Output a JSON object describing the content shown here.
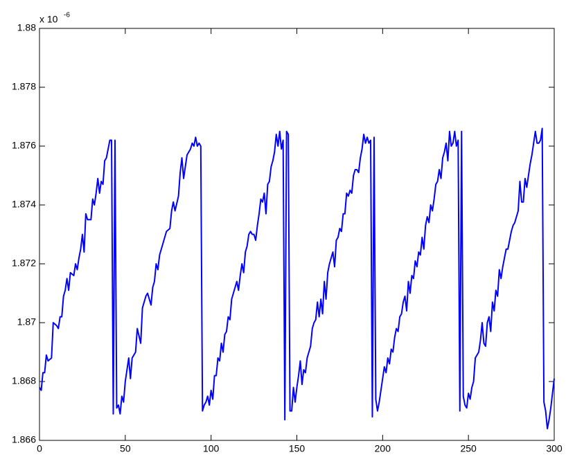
{
  "chart_data": {
    "type": "line",
    "exponent_label": {
      "base": "x 10",
      "power": "-6"
    },
    "color": "#0000ff",
    "x": [
      0,
      1,
      2,
      3,
      4,
      5,
      7,
      8,
      10,
      11,
      12,
      13,
      14,
      15,
      16,
      17,
      18,
      20,
      21,
      22,
      23,
      24,
      25,
      26,
      27,
      28,
      30,
      31,
      32,
      33,
      34,
      35,
      36,
      37,
      38,
      39,
      41,
      42,
      43,
      44,
      45,
      46,
      47,
      48,
      49,
      50,
      52,
      53,
      54,
      56,
      57,
      59,
      60,
      62,
      63,
      65,
      66,
      67,
      68,
      69,
      70,
      72,
      74,
      76,
      77,
      78,
      79,
      81,
      82,
      83,
      84,
      86,
      88,
      89,
      90,
      91,
      92,
      93,
      94,
      95,
      96,
      97,
      98,
      99,
      100,
      101,
      102,
      103,
      104,
      105,
      106,
      107,
      108,
      109,
      110,
      111,
      112,
      113,
      114,
      115,
      116,
      117,
      118,
      119,
      120,
      121,
      122,
      123,
      124,
      125,
      126,
      127,
      128,
      129,
      130,
      131,
      132,
      133,
      134,
      135,
      136,
      137,
      138,
      139,
      140,
      141,
      142,
      143,
      144,
      145,
      146,
      147,
      148,
      149,
      150,
      151,
      152,
      153,
      154,
      155,
      156,
      157,
      158,
      159,
      160,
      161,
      162,
      163,
      164,
      165,
      166,
      167,
      168,
      169,
      170,
      171,
      172,
      173,
      174,
      175,
      176,
      177,
      178,
      179,
      180,
      181,
      182,
      183,
      184,
      185,
      186,
      187,
      188,
      189,
      190,
      191,
      192,
      193,
      194,
      195,
      196,
      197,
      198,
      199,
      200,
      201,
      202,
      203,
      204,
      205,
      206,
      207,
      208,
      209,
      210,
      211,
      212,
      213,
      214,
      215,
      216,
      217,
      218,
      219,
      220,
      221,
      222,
      223,
      224,
      225,
      226,
      227,
      228,
      229,
      230,
      231,
      232,
      233,
      234,
      235,
      236,
      237,
      238,
      239,
      240,
      241,
      242,
      243,
      244,
      245,
      246,
      247,
      248,
      249,
      250,
      251,
      252,
      253,
      254,
      255,
      256,
      257,
      258,
      259,
      260,
      261,
      262,
      263,
      264,
      265,
      266,
      267,
      268,
      269,
      270,
      271,
      272,
      273,
      274,
      275,
      276,
      277,
      278,
      279,
      280,
      281,
      282,
      283,
      284,
      285,
      286,
      287,
      288,
      289,
      290,
      291,
      292,
      293,
      294,
      295,
      296,
      297,
      298,
      299,
      300
    ],
    "values": [
      1.8678,
      1.8677,
      1.8683,
      1.8683,
      1.8689,
      1.8687,
      1.8688,
      1.87,
      1.8699,
      1.8698,
      1.8702,
      1.8702,
      1.8709,
      1.8711,
      1.8715,
      1.8711,
      1.8717,
      1.8716,
      1.872,
      1.8718,
      1.8722,
      1.8725,
      1.873,
      1.8724,
      1.8737,
      1.8735,
      1.8735,
      1.8742,
      1.874,
      1.8744,
      1.8749,
      1.8744,
      1.8748,
      1.8747,
      1.8755,
      1.8756,
      1.8762,
      1.8762,
      1.8669,
      1.8762,
      1.8671,
      1.8672,
      1.8669,
      1.8675,
      1.8673,
      1.868,
      1.8688,
      1.8681,
      1.8688,
      1.869,
      1.8698,
      1.8693,
      1.8705,
      1.8709,
      1.871,
      1.8706,
      1.8712,
      1.8714,
      1.872,
      1.8718,
      1.8723,
      1.8727,
      1.8731,
      1.8732,
      1.8738,
      1.8741,
      1.8738,
      1.8743,
      1.8751,
      1.8756,
      1.8749,
      1.8757,
      1.8759,
      1.8761,
      1.876,
      1.8763,
      1.876,
      1.8761,
      1.876,
      1.867,
      1.8672,
      1.8673,
      1.8675,
      1.8672,
      1.8677,
      1.8674,
      1.8682,
      1.8682,
      1.8688,
      1.8687,
      1.8693,
      1.869,
      1.8696,
      1.8697,
      1.8702,
      1.8701,
      1.8708,
      1.871,
      1.8712,
      1.8714,
      1.8711,
      1.8716,
      1.872,
      1.8717,
      1.8724,
      1.8726,
      1.873,
      1.8731,
      1.873,
      1.873,
      1.8728,
      1.8733,
      1.8737,
      1.8742,
      1.8741,
      1.8744,
      1.8737,
      1.8747,
      1.8748,
      1.8753,
      1.8755,
      1.8758,
      1.8764,
      1.876,
      1.8765,
      1.8759,
      1.8762,
      1.8667,
      1.8765,
      1.8764,
      1.867,
      1.867,
      1.8678,
      1.8673,
      1.8678,
      1.8682,
      1.8687,
      1.8679,
      1.8684,
      1.8683,
      1.8688,
      1.869,
      1.8692,
      1.8698,
      1.87,
      1.8701,
      1.8707,
      1.8702,
      1.8708,
      1.8703,
      1.8714,
      1.8708,
      1.8717,
      1.872,
      1.8722,
      1.8724,
      1.8719,
      1.8728,
      1.8729,
      1.8732,
      1.8731,
      1.8737,
      1.8737,
      1.8744,
      1.8743,
      1.8745,
      1.8744,
      1.875,
      1.8752,
      1.8752,
      1.8751,
      1.8756,
      1.8759,
      1.8764,
      1.8761,
      1.8763,
      1.8761,
      1.8762,
      1.8668,
      1.8763,
      1.8674,
      1.867,
      1.8673,
      1.8677,
      1.8681,
      1.8685,
      1.8683,
      1.8688,
      1.8686,
      1.8691,
      1.869,
      1.8695,
      1.8698,
      1.8697,
      1.8702,
      1.8703,
      1.8707,
      1.8709,
      1.8704,
      1.8714,
      1.871,
      1.8716,
      1.8715,
      1.8721,
      1.8719,
      1.8724,
      1.8723,
      1.8729,
      1.8725,
      1.8733,
      1.8736,
      1.8734,
      1.874,
      1.8738,
      1.8742,
      1.8747,
      1.8748,
      1.8752,
      1.8749,
      1.8756,
      1.8758,
      1.8761,
      1.8755,
      1.8765,
      1.876,
      1.8761,
      1.8765,
      1.876,
      1.8762,
      1.867,
      1.8765,
      1.8675,
      1.8672,
      1.8671,
      1.8676,
      1.8674,
      1.8678,
      1.868,
      1.8688,
      1.8689,
      1.869,
      1.8694,
      1.87,
      1.8693,
      1.8692,
      1.87,
      1.8702,
      1.8697,
      1.8707,
      1.8704,
      1.8711,
      1.8709,
      1.8718,
      1.8715,
      1.8719,
      1.8722,
      1.8725,
      1.8725,
      1.8728,
      1.8731,
      1.8733,
      1.8734,
      1.8736,
      1.8738,
      1.8748,
      1.8741,
      1.8741,
      1.8749,
      1.8746,
      1.875,
      1.8754,
      1.8757,
      1.8761,
      1.8765,
      1.8761,
      1.8761,
      1.8762,
      1.8766,
      1.8673,
      1.867,
      1.8664,
      1.8667,
      1.8671,
      1.8676,
      1.8681
    ],
    "xlim": [
      0,
      300
    ],
    "xticks": [
      0,
      50,
      100,
      150,
      200,
      250,
      300
    ],
    "ylim": [
      1.866,
      1.88
    ],
    "yticks": [
      1.866,
      1.868,
      1.87,
      1.872,
      1.874,
      1.876,
      1.878,
      1.88
    ]
  }
}
